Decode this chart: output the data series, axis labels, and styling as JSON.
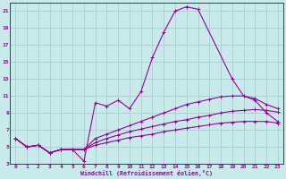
{
  "background_color": "#c8eaea",
  "grid_color": "#aacccc",
  "line_color": "#990099",
  "xlabel": "Windchill (Refroidissement éolien,°C)",
  "xlim": [
    -0.5,
    23.5
  ],
  "ylim": [
    3,
    22
  ],
  "yticks": [
    3,
    5,
    7,
    9,
    11,
    13,
    15,
    17,
    19,
    21
  ],
  "xticks": [
    0,
    1,
    2,
    3,
    4,
    5,
    6,
    7,
    8,
    9,
    10,
    11,
    12,
    13,
    14,
    15,
    16,
    17,
    18,
    19,
    20,
    21,
    22,
    23
  ],
  "series": [
    {
      "x": [
        0,
        1,
        2,
        3,
        4,
        5,
        6,
        7,
        8,
        9,
        10,
        11,
        12,
        13,
        14,
        15,
        16,
        19,
        20,
        21,
        22,
        23
      ],
      "y": [
        6,
        5,
        5.2,
        4.3,
        4.7,
        4.7,
        3.3,
        10.2,
        9.8,
        10.5,
        9.5,
        11.5,
        15.5,
        18.5,
        21.0,
        21.5,
        21.2,
        13.0,
        11.0,
        10.5,
        9.0,
        8.0
      ]
    },
    {
      "x": [
        0,
        1,
        2,
        3,
        4,
        5,
        6,
        7,
        8,
        9,
        10,
        11,
        12,
        13,
        14,
        15,
        16,
        17,
        18,
        19,
        20,
        21,
        22,
        23
      ],
      "y": [
        6,
        5,
        5.2,
        4.3,
        4.7,
        4.7,
        4.7,
        6.0,
        6.5,
        7.0,
        7.5,
        8.0,
        8.5,
        9.0,
        9.5,
        10.0,
        10.3,
        10.6,
        10.9,
        11.0,
        11.0,
        10.7,
        10.0,
        9.5
      ]
    },
    {
      "x": [
        0,
        1,
        2,
        3,
        4,
        5,
        6,
        7,
        8,
        9,
        10,
        11,
        12,
        13,
        14,
        15,
        16,
        17,
        18,
        19,
        20,
        21,
        22,
        23
      ],
      "y": [
        6,
        5,
        5.2,
        4.3,
        4.7,
        4.7,
        4.7,
        5.5,
        6.0,
        6.4,
        6.8,
        7.1,
        7.4,
        7.7,
        8.0,
        8.2,
        8.5,
        8.7,
        9.0,
        9.2,
        9.3,
        9.4,
        9.3,
        9.1
      ]
    },
    {
      "x": [
        0,
        1,
        2,
        3,
        4,
        5,
        6,
        7,
        8,
        9,
        10,
        11,
        12,
        13,
        14,
        15,
        16,
        17,
        18,
        19,
        20,
        21,
        22,
        23
      ],
      "y": [
        6,
        5,
        5.2,
        4.3,
        4.7,
        4.7,
        4.7,
        5.2,
        5.5,
        5.8,
        6.1,
        6.3,
        6.5,
        6.8,
        7.0,
        7.2,
        7.4,
        7.6,
        7.8,
        7.9,
        8.0,
        8.0,
        8.0,
        7.8
      ]
    }
  ]
}
